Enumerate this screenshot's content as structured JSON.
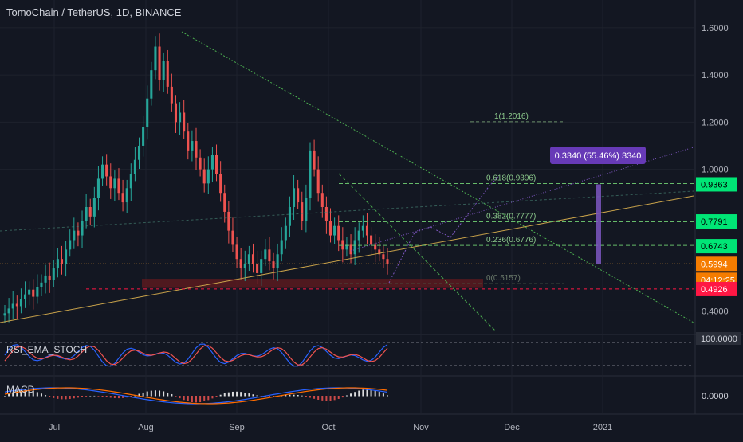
{
  "header": {
    "title": "TomoChain / TetherUS, 1D, BINANCE"
  },
  "indicators": {
    "rsi_label": "RSI_EMA_STOCH",
    "macd_label": "MACD"
  },
  "colors": {
    "background": "#131722",
    "up": "#26a69a",
    "down": "#ef5350",
    "green_line": "#4caf50",
    "fib_green": "#66bb6a",
    "purple": "#7e57c2",
    "lime_label": "#00e676",
    "orange": "#f57c00",
    "red": "#ff1744",
    "trend_orange": "#c8a24a",
    "zone_red": "#5a1a1e"
  },
  "chart_data": {
    "type": "candlestick",
    "symbol": "TomoChain / TetherUS",
    "timeframe": "1D",
    "exchange": "BINANCE",
    "xaxis_labels": [
      "Jul",
      "Aug",
      "Sep",
      "Oct",
      "Nov",
      "Dec",
      "2021"
    ],
    "yaxis_ticks": [
      "1.6000",
      "1.4000",
      "1.2000",
      "1.0000",
      "0.4000"
    ],
    "ylim": [
      0.3,
      1.65
    ],
    "price_tags": [
      {
        "value": "0.9363",
        "color": "#00e676"
      },
      {
        "value": "0.7791",
        "color": "#00e676"
      },
      {
        "value": "0.6743",
        "color": "#00e676"
      },
      {
        "value": "0.5994",
        "color": "#f57c00"
      },
      {
        "value": "04:12:25",
        "color": "#f57c00"
      },
      {
        "value": "0.4926",
        "color": "#ff1744"
      }
    ],
    "fib_levels": [
      {
        "label": "1(1.2016)",
        "value": 1.2016
      },
      {
        "label": "0.618(0.9396)",
        "value": 0.9396
      },
      {
        "label": "0.382(0.7777)",
        "value": 0.7777
      },
      {
        "label": "0.236(0.6776)",
        "value": 0.6776
      },
      {
        "label": "0(0.5157)",
        "value": 0.5157
      }
    ],
    "measure_label": "0.3340 (55.46%) 3340",
    "rsi_axis_label": "100.0000",
    "macd_axis_label": "0.0000",
    "closes": [
      0.39,
      0.41,
      0.43,
      0.42,
      0.45,
      0.47,
      0.49,
      0.46,
      0.5,
      0.52,
      0.55,
      0.53,
      0.58,
      0.62,
      0.6,
      0.66,
      0.7,
      0.74,
      0.72,
      0.78,
      0.84,
      0.8,
      0.88,
      0.96,
      1.02,
      0.97,
      0.92,
      0.96,
      0.9,
      0.86,
      0.92,
      0.98,
      1.04,
      1.1,
      1.18,
      1.3,
      1.42,
      1.52,
      1.38,
      1.46,
      1.35,
      1.28,
      1.2,
      1.24,
      1.16,
      1.08,
      1.12,
      1.05,
      1.0,
      0.94,
      1.0,
      1.06,
      0.98,
      0.9,
      0.82,
      0.74,
      0.68,
      0.62,
      0.58,
      0.6,
      0.64,
      0.6,
      0.56,
      0.62,
      0.66,
      0.61,
      0.58,
      0.64,
      0.7,
      0.76,
      0.84,
      0.92,
      0.86,
      0.78,
      0.88,
      1.08,
      1.0,
      0.9,
      0.84,
      0.78,
      0.72,
      0.76,
      0.7,
      0.66,
      0.68,
      0.64,
      0.7,
      0.74,
      0.76,
      0.72,
      0.68,
      0.66,
      0.64,
      0.62,
      0.6
    ]
  }
}
